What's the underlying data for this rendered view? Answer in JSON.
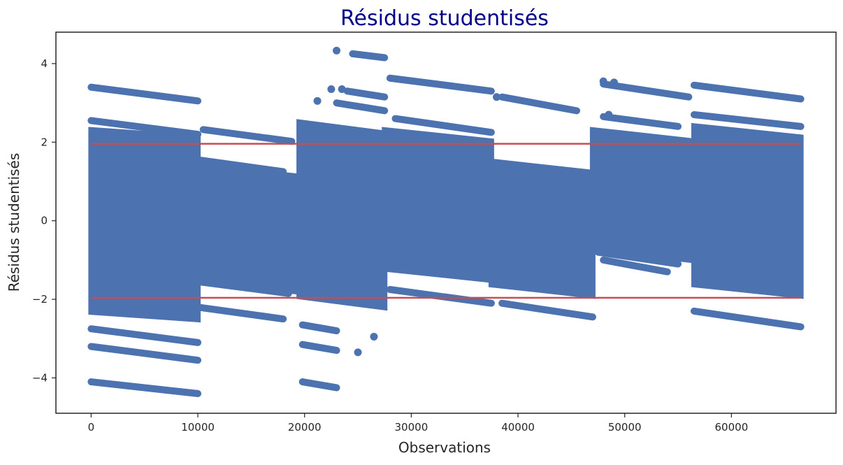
{
  "chart_data": {
    "type": "scatter",
    "title": "Résidus studentisés",
    "xlabel": "Observations",
    "ylabel": "Résidus studentisés",
    "xlim": [
      -3300,
      69800
    ],
    "ylim": [
      -4.9,
      4.8
    ],
    "xticks": [
      0,
      10000,
      20000,
      30000,
      40000,
      50000,
      60000
    ],
    "xtick_labels": [
      "0",
      "10000",
      "20000",
      "30000",
      "40000",
      "50000",
      "60000"
    ],
    "yticks": [
      -4,
      -2,
      0,
      2,
      4
    ],
    "ytick_labels": [
      "−4",
      "−2",
      "0",
      "2",
      "4"
    ],
    "grid": false,
    "colors": {
      "points": "#4c72b0",
      "threshold_lines": "#c44e52",
      "title": "#00008b",
      "frame": "#262626"
    },
    "threshold_lines": [
      1.96,
      -1.96
    ],
    "dense_bands": [
      {
        "x": [
          0,
          10000
        ],
        "y_top": [
          2.3,
          2.1
        ],
        "y_bottom": [
          -2.3,
          -2.5
        ]
      },
      {
        "x": [
          10000,
          19500
        ],
        "y_top": [
          1.4,
          1.1
        ],
        "y_bottom": [
          -1.5,
          -1.8
        ]
      },
      {
        "x": [
          19500,
          27500
        ],
        "y_top": [
          2.5,
          2.2
        ],
        "y_bottom": [
          -1.9,
          -2.2
        ]
      },
      {
        "x": [
          27500,
          37500
        ],
        "y_top": [
          2.3,
          2.0
        ],
        "y_bottom": [
          -1.2,
          -1.5
        ]
      },
      {
        "x": [
          37500,
          47000
        ],
        "y_top": [
          1.5,
          1.2
        ],
        "y_bottom": [
          -1.6,
          -1.9
        ]
      },
      {
        "x": [
          47000,
          56500
        ],
        "y_top": [
          2.3,
          2.0
        ],
        "y_bottom": [
          -0.7,
          -1.0
        ]
      },
      {
        "x": [
          56500,
          66500
        ],
        "y_top": [
          2.4,
          2.1
        ],
        "y_bottom": [
          -1.6,
          -1.9
        ]
      }
    ],
    "lines": [
      {
        "x": [
          0,
          10000
        ],
        "y": [
          3.4,
          3.05
        ]
      },
      {
        "x": [
          0,
          10000
        ],
        "y": [
          2.55,
          2.2
        ]
      },
      {
        "x": [
          0,
          10000
        ],
        "y": [
          -2.75,
          -3.1
        ]
      },
      {
        "x": [
          0,
          10000
        ],
        "y": [
          -3.2,
          -3.55
        ]
      },
      {
        "x": [
          0,
          10000
        ],
        "y": [
          -4.1,
          -4.4
        ]
      },
      {
        "x": [
          10500,
          18800
        ],
        "y": [
          2.32,
          2.02
        ]
      },
      {
        "x": [
          10000,
          18000
        ],
        "y": [
          1.55,
          1.25
        ]
      },
      {
        "x": [
          10000,
          18500
        ],
        "y": [
          -1.55,
          -1.85
        ]
      },
      {
        "x": [
          10000,
          18000
        ],
        "y": [
          -2.2,
          -2.5
        ]
      },
      {
        "x": [
          19800,
          23000
        ],
        "y": [
          -2.65,
          -2.8
        ]
      },
      {
        "x": [
          19800,
          23000
        ],
        "y": [
          -3.15,
          -3.3
        ]
      },
      {
        "x": [
          19800,
          23000
        ],
        "y": [
          -4.1,
          -4.25
        ]
      },
      {
        "x": [
          24500,
          27500
        ],
        "y": [
          4.25,
          4.15
        ]
      },
      {
        "x": [
          24000,
          27500
        ],
        "y": [
          3.3,
          3.15
        ]
      },
      {
        "x": [
          23000,
          27500
        ],
        "y": [
          3.0,
          2.8
        ]
      },
      {
        "x": [
          28000,
          37500
        ],
        "y": [
          3.63,
          3.3
        ]
      },
      {
        "x": [
          28500,
          37500
        ],
        "y": [
          2.6,
          2.25
        ]
      },
      {
        "x": [
          28000,
          37500
        ],
        "y": [
          -1.75,
          -2.1
        ]
      },
      {
        "x": [
          38500,
          45500
        ],
        "y": [
          3.15,
          2.8
        ]
      },
      {
        "x": [
          38500,
          47000
        ],
        "y": [
          -2.1,
          -2.45
        ]
      },
      {
        "x": [
          48000,
          56000
        ],
        "y": [
          3.48,
          3.15
        ]
      },
      {
        "x": [
          48000,
          55000
        ],
        "y": [
          2.65,
          2.4
        ]
      },
      {
        "x": [
          47500,
          55000
        ],
        "y": [
          -0.8,
          -1.1
        ]
      },
      {
        "x": [
          48000,
          54000
        ],
        "y": [
          -1.0,
          -1.3
        ]
      },
      {
        "x": [
          56500,
          66500
        ],
        "y": [
          3.45,
          3.1
        ]
      },
      {
        "x": [
          56500,
          66500
        ],
        "y": [
          2.7,
          2.4
        ]
      },
      {
        "x": [
          56500,
          66500
        ],
        "y": [
          -2.3,
          -2.7
        ]
      }
    ],
    "points": [
      {
        "x": 23000,
        "y": 4.33
      },
      {
        "x": 48000,
        "y": 3.55
      },
      {
        "x": 49000,
        "y": 3.52
      },
      {
        "x": 22500,
        "y": 3.35
      },
      {
        "x": 23500,
        "y": 3.35
      },
      {
        "x": 21200,
        "y": 3.05
      },
      {
        "x": 20500,
        "y": 2.35
      },
      {
        "x": 26500,
        "y": -2.95
      },
      {
        "x": 25000,
        "y": -3.35
      },
      {
        "x": 48500,
        "y": 2.7
      },
      {
        "x": 38000,
        "y": 3.15
      }
    ]
  }
}
